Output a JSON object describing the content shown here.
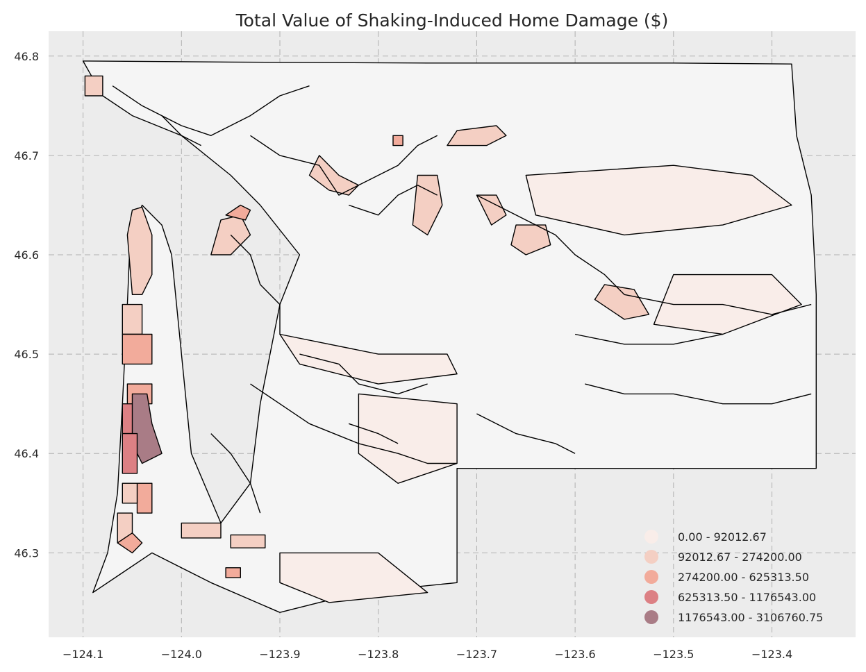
{
  "chart_data": {
    "type": "choropleth",
    "title": "Total Value of Shaking-Induced Home Damage ($)",
    "xlim": [
      -124.135,
      -123.315
    ],
    "ylim": [
      46.215,
      46.825
    ],
    "x_ticks": [
      {
        "value": -124.1,
        "label": "−124.1"
      },
      {
        "value": -124.0,
        "label": "−124.0"
      },
      {
        "value": -123.9,
        "label": "−123.9"
      },
      {
        "value": -123.8,
        "label": "−123.8"
      },
      {
        "value": -123.7,
        "label": "−123.7"
      },
      {
        "value": -123.6,
        "label": "−123.6"
      },
      {
        "value": -123.5,
        "label": "−123.5"
      },
      {
        "value": -123.4,
        "label": "−123.4"
      }
    ],
    "y_ticks": [
      {
        "value": 46.3,
        "label": "46.3"
      },
      {
        "value": 46.4,
        "label": "46.4"
      },
      {
        "value": 46.5,
        "label": "46.5"
      },
      {
        "value": 46.6,
        "label": "46.6"
      },
      {
        "value": 46.7,
        "label": "46.7"
      },
      {
        "value": 46.8,
        "label": "46.8"
      }
    ],
    "grid": true,
    "legend": {
      "position": "bottom-right",
      "bins": [
        {
          "label": "0.00 - 92012.67",
          "color": "#f9ede9"
        },
        {
          "label": "92012.67 - 274200.00",
          "color": "#f4cfc3"
        },
        {
          "label": "274200.00 - 625313.50",
          "color": "#f2ab9b"
        },
        {
          "label": "625313.50 - 1176543.00",
          "color": "#dc8084"
        },
        {
          "label": "1176543.00 - 3106760.75",
          "color": "#a97c86"
        }
      ]
    },
    "regions": [
      {
        "bin": 0,
        "coords": [
          [
            -124.1,
            46.795
          ],
          [
            -123.95,
            46.794
          ],
          [
            -123.75,
            46.793
          ],
          [
            -123.5,
            46.793
          ],
          [
            -123.38,
            46.792
          ],
          [
            -123.375,
            46.72
          ],
          [
            -123.36,
            46.66
          ],
          [
            -123.355,
            46.56
          ],
          [
            -123.355,
            46.385
          ],
          [
            -123.55,
            46.385
          ],
          [
            -123.72,
            46.385
          ],
          [
            -123.72,
            46.27
          ],
          [
            -123.82,
            46.26
          ],
          [
            -123.9,
            46.24
          ],
          [
            -123.97,
            46.27
          ],
          [
            -124.03,
            46.3
          ],
          [
            -124.06,
            46.28
          ],
          [
            -124.09,
            46.26
          ],
          [
            -124.075,
            46.3
          ],
          [
            -124.065,
            46.36
          ],
          [
            -124.06,
            46.45
          ],
          [
            -124.055,
            46.55
          ],
          [
            -124.052,
            46.62
          ],
          [
            -124.04,
            46.65
          ],
          [
            -124.02,
            46.63
          ],
          [
            -124.01,
            46.6
          ],
          [
            -124.0,
            46.5
          ],
          [
            -123.99,
            46.4
          ],
          [
            -123.96,
            46.33
          ],
          [
            -123.93,
            46.37
          ],
          [
            -123.92,
            46.45
          ],
          [
            -123.9,
            46.55
          ],
          [
            -123.88,
            46.6
          ],
          [
            -123.92,
            46.65
          ],
          [
            -123.95,
            46.68
          ],
          [
            -124.0,
            46.72
          ],
          [
            -124.05,
            46.74
          ],
          [
            -124.08,
            46.76
          ],
          [
            -124.1,
            46.795
          ]
        ]
      },
      {
        "bin": 1,
        "coords": [
          [
            -124.098,
            46.78
          ],
          [
            -124.08,
            46.78
          ],
          [
            -124.08,
            46.76
          ],
          [
            -124.098,
            46.76
          ]
        ]
      },
      {
        "bin": 1,
        "coords": [
          [
            -124.055,
            46.62
          ],
          [
            -124.05,
            46.645
          ],
          [
            -124.04,
            46.648
          ],
          [
            -124.03,
            46.62
          ],
          [
            -124.03,
            46.58
          ],
          [
            -124.04,
            46.56
          ],
          [
            -124.05,
            46.56
          ]
        ]
      },
      {
        "bin": 1,
        "coords": [
          [
            -124.06,
            46.55
          ],
          [
            -124.04,
            46.55
          ],
          [
            -124.04,
            46.52
          ],
          [
            -124.06,
            46.52
          ]
        ]
      },
      {
        "bin": 2,
        "coords": [
          [
            -124.06,
            46.52
          ],
          [
            -124.03,
            46.52
          ],
          [
            -124.03,
            46.49
          ],
          [
            -124.06,
            46.49
          ]
        ]
      },
      {
        "bin": 2,
        "coords": [
          [
            -124.055,
            46.47
          ],
          [
            -124.03,
            46.47
          ],
          [
            -124.03,
            46.45
          ],
          [
            -124.055,
            46.45
          ]
        ]
      },
      {
        "bin": 3,
        "coords": [
          [
            -124.06,
            46.45
          ],
          [
            -124.04,
            46.45
          ],
          [
            -124.04,
            46.42
          ],
          [
            -124.06,
            46.42
          ]
        ]
      },
      {
        "bin": 4,
        "coords": [
          [
            -124.05,
            46.46
          ],
          [
            -124.035,
            46.46
          ],
          [
            -124.03,
            46.43
          ],
          [
            -124.02,
            46.4
          ],
          [
            -124.04,
            46.39
          ],
          [
            -124.05,
            46.41
          ]
        ]
      },
      {
        "bin": 3,
        "coords": [
          [
            -124.06,
            46.42
          ],
          [
            -124.045,
            46.42
          ],
          [
            -124.045,
            46.38
          ],
          [
            -124.06,
            46.38
          ]
        ]
      },
      {
        "bin": 2,
        "coords": [
          [
            -124.045,
            46.37
          ],
          [
            -124.03,
            46.37
          ],
          [
            -124.03,
            46.34
          ],
          [
            -124.045,
            46.34
          ]
        ]
      },
      {
        "bin": 1,
        "coords": [
          [
            -124.06,
            46.37
          ],
          [
            -124.045,
            46.37
          ],
          [
            -124.045,
            46.35
          ],
          [
            -124.06,
            46.35
          ]
        ]
      },
      {
        "bin": 1,
        "coords": [
          [
            -124.065,
            46.34
          ],
          [
            -124.05,
            46.34
          ],
          [
            -124.05,
            46.31
          ],
          [
            -124.065,
            46.31
          ]
        ]
      },
      {
        "bin": 2,
        "coords": [
          [
            -124.065,
            46.31
          ],
          [
            -124.05,
            46.3
          ],
          [
            -124.04,
            46.31
          ],
          [
            -124.05,
            46.32
          ]
        ]
      },
      {
        "bin": 1,
        "coords": [
          [
            -124.0,
            46.33
          ],
          [
            -123.96,
            46.33
          ],
          [
            -123.96,
            46.315
          ],
          [
            -124.0,
            46.315
          ]
        ]
      },
      {
        "bin": 1,
        "coords": [
          [
            -123.95,
            46.318
          ],
          [
            -123.915,
            46.318
          ],
          [
            -123.915,
            46.305
          ],
          [
            -123.95,
            46.305
          ]
        ]
      },
      {
        "bin": 2,
        "coords": [
          [
            -123.955,
            46.285
          ],
          [
            -123.94,
            46.285
          ],
          [
            -123.94,
            46.275
          ],
          [
            -123.955,
            46.275
          ]
        ]
      },
      {
        "bin": 1,
        "coords": [
          [
            -123.97,
            46.6
          ],
          [
            -123.95,
            46.6
          ],
          [
            -123.93,
            46.62
          ],
          [
            -123.94,
            46.64
          ],
          [
            -123.96,
            46.635
          ]
        ]
      },
      {
        "bin": 2,
        "coords": [
          [
            -123.955,
            46.64
          ],
          [
            -123.94,
            46.65
          ],
          [
            -123.93,
            46.645
          ],
          [
            -123.935,
            46.635
          ]
        ]
      },
      {
        "bin": 1,
        "coords": [
          [
            -123.86,
            46.7
          ],
          [
            -123.84,
            46.68
          ],
          [
            -123.82,
            46.67
          ],
          [
            -123.83,
            46.66
          ],
          [
            -123.85,
            46.665
          ],
          [
            -123.87,
            46.68
          ]
        ]
      },
      {
        "bin": 1,
        "coords": [
          [
            -123.76,
            46.68
          ],
          [
            -123.74,
            46.68
          ],
          [
            -123.735,
            46.65
          ],
          [
            -123.75,
            46.62
          ],
          [
            -123.765,
            46.63
          ]
        ]
      },
      {
        "bin": 1,
        "coords": [
          [
            -123.73,
            46.71
          ],
          [
            -123.69,
            46.71
          ],
          [
            -123.67,
            46.72
          ],
          [
            -123.68,
            46.73
          ],
          [
            -123.72,
            46.725
          ]
        ]
      },
      {
        "bin": 1,
        "coords": [
          [
            -123.7,
            46.66
          ],
          [
            -123.68,
            46.66
          ],
          [
            -123.67,
            46.64
          ],
          [
            -123.685,
            46.63
          ]
        ]
      },
      {
        "bin": 1,
        "coords": [
          [
            -123.66,
            46.63
          ],
          [
            -123.63,
            46.63
          ],
          [
            -123.625,
            46.61
          ],
          [
            -123.65,
            46.6
          ],
          [
            -123.665,
            46.61
          ]
        ]
      },
      {
        "bin": 1,
        "coords": [
          [
            -123.57,
            46.57
          ],
          [
            -123.54,
            46.565
          ],
          [
            -123.525,
            46.54
          ],
          [
            -123.55,
            46.535
          ],
          [
            -123.58,
            46.555
          ]
        ]
      },
      {
        "bin": 2,
        "coords": [
          [
            -123.785,
            46.72
          ],
          [
            -123.775,
            46.72
          ],
          [
            -123.775,
            46.71
          ],
          [
            -123.785,
            46.71
          ]
        ]
      },
      {
        "bin": 0,
        "coords": [
          [
            -123.65,
            46.68
          ],
          [
            -123.5,
            46.69
          ],
          [
            -123.42,
            46.68
          ],
          [
            -123.38,
            46.65
          ],
          [
            -123.45,
            46.63
          ],
          [
            -123.55,
            46.62
          ],
          [
            -123.64,
            46.64
          ]
        ]
      },
      {
        "bin": 0,
        "coords": [
          [
            -123.5,
            46.58
          ],
          [
            -123.4,
            46.58
          ],
          [
            -123.37,
            46.55
          ],
          [
            -123.45,
            46.52
          ],
          [
            -123.52,
            46.53
          ]
        ]
      },
      {
        "bin": 0,
        "coords": [
          [
            -123.9,
            46.52
          ],
          [
            -123.8,
            46.5
          ],
          [
            -123.73,
            46.5
          ],
          [
            -123.72,
            46.48
          ],
          [
            -123.8,
            46.47
          ],
          [
            -123.88,
            46.49
          ]
        ]
      },
      {
        "bin": 0,
        "coords": [
          [
            -123.82,
            46.46
          ],
          [
            -123.72,
            46.45
          ],
          [
            -123.72,
            46.39
          ],
          [
            -123.78,
            46.37
          ],
          [
            -123.82,
            46.4
          ]
        ]
      },
      {
        "bin": 0,
        "coords": [
          [
            -123.9,
            46.3
          ],
          [
            -123.8,
            46.3
          ],
          [
            -123.75,
            46.26
          ],
          [
            -123.85,
            46.25
          ],
          [
            -123.9,
            46.27
          ]
        ]
      }
    ],
    "lines": [
      [
        [
          -124.07,
          46.77
        ],
        [
          -124.04,
          46.75
        ],
        [
          -124.0,
          46.73
        ],
        [
          -123.97,
          46.72
        ],
        [
          -123.93,
          46.74
        ],
        [
          -123.9,
          46.76
        ],
        [
          -123.87,
          46.77
        ]
      ],
      [
        [
          -124.02,
          46.74
        ],
        [
          -124.0,
          46.72
        ],
        [
          -123.98,
          46.71
        ]
      ],
      [
        [
          -123.93,
          46.72
        ],
        [
          -123.9,
          46.7
        ],
        [
          -123.86,
          46.69
        ],
        [
          -123.84,
          46.66
        ],
        [
          -123.82,
          46.67
        ],
        [
          -123.78,
          46.69
        ],
        [
          -123.76,
          46.71
        ],
        [
          -123.74,
          46.72
        ]
      ],
      [
        [
          -123.83,
          46.65
        ],
        [
          -123.8,
          46.64
        ],
        [
          -123.78,
          46.66
        ],
        [
          -123.76,
          46.67
        ],
        [
          -123.74,
          46.66
        ]
      ],
      [
        [
          -123.7,
          46.66
        ],
        [
          -123.66,
          46.64
        ],
        [
          -123.62,
          46.62
        ],
        [
          -123.6,
          46.6
        ],
        [
          -123.57,
          46.58
        ],
        [
          -123.55,
          46.56
        ],
        [
          -123.5,
          46.55
        ],
        [
          -123.45,
          46.55
        ],
        [
          -123.4,
          46.54
        ],
        [
          -123.36,
          46.55
        ]
      ],
      [
        [
          -123.95,
          46.62
        ],
        [
          -123.93,
          46.6
        ],
        [
          -123.92,
          46.57
        ],
        [
          -123.9,
          46.55
        ],
        [
          -123.9,
          46.52
        ]
      ],
      [
        [
          -123.88,
          46.5
        ],
        [
          -123.84,
          46.49
        ],
        [
          -123.82,
          46.47
        ],
        [
          -123.78,
          46.46
        ],
        [
          -123.75,
          46.47
        ]
      ],
      [
        [
          -123.93,
          46.47
        ],
        [
          -123.9,
          46.45
        ],
        [
          -123.87,
          46.43
        ],
        [
          -123.82,
          46.41
        ],
        [
          -123.78,
          46.4
        ],
        [
          -123.75,
          46.39
        ],
        [
          -123.72,
          46.39
        ]
      ],
      [
        [
          -123.83,
          46.43
        ],
        [
          -123.8,
          46.42
        ],
        [
          -123.78,
          46.41
        ]
      ],
      [
        [
          -123.97,
          46.42
        ],
        [
          -123.95,
          46.4
        ],
        [
          -123.93,
          46.37
        ],
        [
          -123.92,
          46.34
        ]
      ],
      [
        [
          -123.7,
          46.44
        ],
        [
          -123.66,
          46.42
        ],
        [
          -123.62,
          46.41
        ],
        [
          -123.6,
          46.4
        ]
      ],
      [
        [
          -123.59,
          46.47
        ],
        [
          -123.55,
          46.46
        ],
        [
          -123.5,
          46.46
        ],
        [
          -123.45,
          46.45
        ],
        [
          -123.4,
          46.45
        ],
        [
          -123.36,
          46.46
        ]
      ],
      [
        [
          -123.6,
          46.52
        ],
        [
          -123.55,
          46.51
        ],
        [
          -123.5,
          46.51
        ],
        [
          -123.45,
          46.52
        ]
      ]
    ]
  }
}
